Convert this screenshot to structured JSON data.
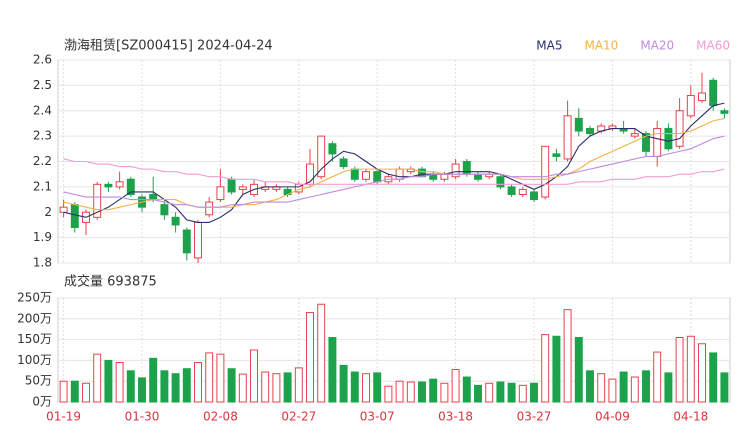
{
  "chart_data": [
    {
      "type": "candlestick",
      "title": "渤海租赁[SZ000415] 2024-04-24",
      "categories": [
        "01-19",
        null,
        null,
        null,
        null,
        null,
        null,
        "01-30",
        null,
        null,
        null,
        null,
        null,
        null,
        "02-08",
        null,
        null,
        null,
        null,
        null,
        null,
        "02-27",
        null,
        null,
        null,
        null,
        null,
        null,
        "03-07",
        null,
        null,
        null,
        null,
        null,
        null,
        "03-18",
        null,
        null,
        null,
        null,
        null,
        null,
        "03-27",
        null,
        null,
        null,
        null,
        null,
        null,
        "04-09",
        null,
        null,
        null,
        null,
        null,
        null,
        "04-18",
        null,
        null,
        null
      ],
      "open": [
        2.0,
        2.03,
        1.96,
        1.98,
        2.11,
        2.1,
        2.13,
        2.06,
        2.07,
        2.03,
        1.98,
        1.93,
        1.82,
        1.99,
        2.05,
        2.13,
        2.09,
        2.07,
        2.09,
        2.09,
        2.09,
        2.08,
        2.11,
        2.14,
        2.27,
        2.21,
        2.17,
        2.13,
        2.16,
        2.12,
        2.13,
        2.16,
        2.17,
        2.15,
        2.13,
        2.14,
        2.2,
        2.15,
        2.14,
        2.14,
        2.1,
        2.07,
        2.08,
        2.06,
        2.23,
        2.21,
        2.37,
        2.33,
        2.32,
        2.33,
        2.33,
        2.3,
        2.31,
        2.22,
        2.33,
        2.26,
        2.38,
        2.44,
        2.52,
        2.4
      ],
      "high": [
        2.05,
        2.04,
        2.01,
        2.12,
        2.12,
        2.16,
        2.14,
        2.07,
        2.14,
        2.05,
        2.0,
        1.94,
        1.97,
        2.06,
        2.17,
        2.14,
        2.11,
        2.13,
        2.12,
        2.11,
        2.1,
        2.12,
        2.25,
        2.3,
        2.28,
        2.22,
        2.18,
        2.17,
        2.17,
        2.15,
        2.18,
        2.18,
        2.18,
        2.16,
        2.16,
        2.21,
        2.21,
        2.16,
        2.16,
        2.15,
        2.11,
        2.1,
        2.09,
        2.26,
        2.25,
        2.44,
        2.41,
        2.34,
        2.35,
        2.35,
        2.36,
        2.33,
        2.32,
        2.36,
        2.35,
        2.45,
        2.5,
        2.55,
        2.53,
        2.41
      ],
      "low": [
        1.98,
        1.92,
        1.91,
        1.97,
        2.08,
        2.09,
        2.06,
        2.0,
        2.04,
        1.97,
        1.92,
        1.81,
        1.8,
        1.98,
        2.04,
        2.07,
        2.07,
        2.06,
        2.08,
        2.08,
        2.06,
        2.07,
        2.1,
        2.13,
        2.2,
        2.17,
        2.12,
        2.12,
        2.11,
        2.11,
        2.12,
        2.15,
        2.14,
        2.12,
        2.12,
        2.13,
        2.14,
        2.12,
        2.13,
        2.09,
        2.06,
        2.06,
        2.04,
        2.05,
        2.2,
        2.2,
        2.3,
        2.3,
        2.31,
        2.32,
        2.31,
        2.29,
        2.22,
        2.18,
        2.24,
        2.25,
        2.37,
        2.43,
        2.4,
        2.37
      ],
      "close": [
        2.02,
        1.94,
        2.0,
        2.11,
        2.1,
        2.12,
        2.07,
        2.02,
        2.05,
        1.99,
        1.95,
        1.84,
        1.96,
        2.04,
        2.1,
        2.08,
        2.1,
        2.11,
        2.1,
        2.1,
        2.07,
        2.11,
        2.19,
        2.3,
        2.23,
        2.18,
        2.13,
        2.16,
        2.12,
        2.14,
        2.17,
        2.17,
        2.14,
        2.13,
        2.15,
        2.19,
        2.15,
        2.13,
        2.15,
        2.1,
        2.07,
        2.09,
        2.05,
        2.26,
        2.22,
        2.38,
        2.32,
        2.31,
        2.34,
        2.34,
        2.32,
        2.31,
        2.24,
        2.33,
        2.25,
        2.4,
        2.46,
        2.47,
        2.42,
        2.39
      ],
      "color_up": "#e8414a",
      "color_down": "#1aa34a",
      "series": [
        {
          "name": "MA5",
          "color": "#2b2f6b",
          "values": [
            2.0,
            1.99,
            1.98,
            2.0,
            2.02,
            2.05,
            2.08,
            2.08,
            2.08,
            2.05,
            2.02,
            1.97,
            1.96,
            1.96,
            1.98,
            2.01,
            2.07,
            2.09,
            2.1,
            2.1,
            2.1,
            2.1,
            2.12,
            2.17,
            2.21,
            2.24,
            2.23,
            2.2,
            2.17,
            2.15,
            2.14,
            2.14,
            2.15,
            2.15,
            2.15,
            2.16,
            2.16,
            2.16,
            2.16,
            2.15,
            2.13,
            2.11,
            2.09,
            2.11,
            2.14,
            2.18,
            2.26,
            2.3,
            2.32,
            2.33,
            2.33,
            2.33,
            2.3,
            2.29,
            2.28,
            2.29,
            2.34,
            2.38,
            2.42,
            2.43
          ]
        },
        {
          "name": "MA10",
          "color": "#f2b248",
          "values": [
            2.04,
            2.03,
            2.02,
            2.01,
            2.01,
            2.02,
            2.03,
            2.04,
            2.05,
            2.05,
            2.05,
            2.03,
            2.02,
            2.02,
            2.02,
            2.02,
            2.03,
            2.03,
            2.04,
            2.05,
            2.07,
            2.09,
            2.1,
            2.12,
            2.14,
            2.16,
            2.17,
            2.17,
            2.17,
            2.17,
            2.17,
            2.17,
            2.16,
            2.16,
            2.15,
            2.15,
            2.15,
            2.15,
            2.15,
            2.15,
            2.14,
            2.13,
            2.13,
            2.13,
            2.14,
            2.15,
            2.17,
            2.2,
            2.22,
            2.24,
            2.26,
            2.28,
            2.3,
            2.31,
            2.31,
            2.31,
            2.32,
            2.34,
            2.36,
            2.37
          ]
        },
        {
          "name": "MA20",
          "color": "#c08ae0",
          "values": [
            2.08,
            2.07,
            2.06,
            2.06,
            2.06,
            2.06,
            2.05,
            2.05,
            2.05,
            2.04,
            2.03,
            2.03,
            2.02,
            2.02,
            2.02,
            2.03,
            2.03,
            2.04,
            2.04,
            2.04,
            2.04,
            2.05,
            2.06,
            2.07,
            2.08,
            2.09,
            2.1,
            2.11,
            2.12,
            2.13,
            2.13,
            2.14,
            2.14,
            2.15,
            2.15,
            2.15,
            2.15,
            2.15,
            2.15,
            2.15,
            2.14,
            2.14,
            2.14,
            2.14,
            2.15,
            2.15,
            2.16,
            2.17,
            2.18,
            2.19,
            2.2,
            2.21,
            2.22,
            2.22,
            2.23,
            2.24,
            2.25,
            2.27,
            2.29,
            2.3
          ]
        },
        {
          "name": "MA60",
          "color": "#f29bd2",
          "values": [
            2.21,
            2.2,
            2.2,
            2.19,
            2.19,
            2.18,
            2.18,
            2.17,
            2.17,
            2.16,
            2.16,
            2.15,
            2.15,
            2.14,
            2.14,
            2.13,
            2.13,
            2.13,
            2.12,
            2.12,
            2.12,
            2.11,
            2.11,
            2.11,
            2.11,
            2.11,
            2.11,
            2.11,
            2.11,
            2.11,
            2.11,
            2.11,
            2.11,
            2.11,
            2.11,
            2.11,
            2.11,
            2.11,
            2.11,
            2.11,
            2.11,
            2.11,
            2.11,
            2.11,
            2.11,
            2.11,
            2.12,
            2.12,
            2.12,
            2.13,
            2.13,
            2.13,
            2.14,
            2.14,
            2.14,
            2.15,
            2.15,
            2.16,
            2.16,
            2.17
          ]
        }
      ],
      "ylim": [
        1.8,
        2.6
      ],
      "yticks": [
        1.8,
        1.9,
        2,
        2.1,
        2.2,
        2.3,
        2.4,
        2.5,
        2.6
      ],
      "grid": true,
      "legend": "top-right"
    },
    {
      "type": "bar",
      "title": "成交量 693875",
      "values": [
        50,
        50,
        45,
        115,
        100,
        95,
        75,
        58,
        105,
        75,
        68,
        80,
        95,
        118,
        115,
        80,
        67,
        125,
        72,
        68,
        70,
        82,
        215,
        235,
        155,
        88,
        72,
        68,
        70,
        38,
        50,
        48,
        48,
        55,
        45,
        78,
        60,
        40,
        45,
        48,
        45,
        40,
        45,
        162,
        158,
        222,
        155,
        75,
        68,
        55,
        72,
        60,
        75,
        120,
        70,
        155,
        158,
        140,
        118,
        70
      ],
      "ylim": [
        0,
        250
      ],
      "yticks": [
        {
          "value": 0,
          "label": "0万"
        },
        {
          "value": 50,
          "label": "50万"
        },
        {
          "value": 100,
          "label": "100万"
        },
        {
          "value": 150,
          "label": "150万"
        },
        {
          "value": 200,
          "label": "200万"
        },
        {
          "value": 250,
          "label": "250万"
        }
      ],
      "grid": true
    }
  ]
}
